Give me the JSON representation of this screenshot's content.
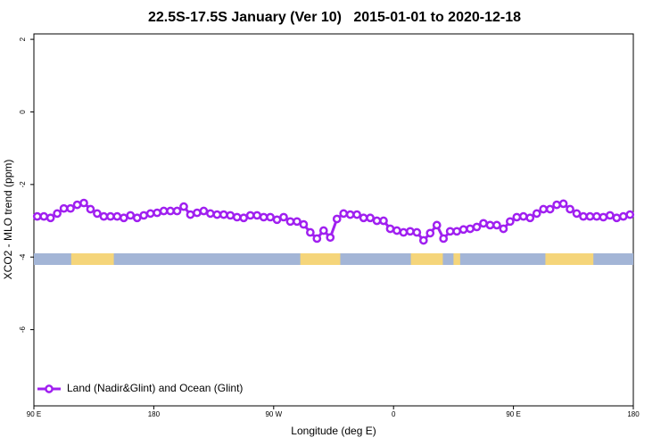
{
  "chart_data": {
    "type": "line",
    "title": "22.5S-17.5S January (Ver 10)   2015-01-01 to 2020-12-18",
    "xlabel": "Longitude (deg E)",
    "ylabel": "XCO2 - MLO trend (ppm)",
    "xlim": [
      90,
      540
    ],
    "xticks": [
      {
        "value": 90,
        "label": "90 E"
      },
      180,
      {
        "value": 270,
        "label": "90 W"
      },
      {
        "value": 360,
        "label": "0"
      },
      {
        "value": 450,
        "label": "90 E"
      },
      {
        "value": 540,
        "label": "180"
      }
    ],
    "ylim": [
      -8.1,
      2.15
    ],
    "yticks": [
      2,
      0,
      -2,
      -4,
      -6
    ],
    "legend": "bottom-left",
    "surface_colors": {
      "ocean": "#a3b5d6",
      "land": "#f5d57a"
    },
    "land_bands": [
      [
        118,
        150
      ],
      [
        290,
        320
      ],
      [
        373,
        397
      ],
      [
        405,
        410
      ],
      [
        474,
        510
      ]
    ],
    "x": [
      92.5,
      97.5,
      102.5,
      107.5,
      112.5,
      117.5,
      122.5,
      127.5,
      132.5,
      137.5,
      142.5,
      147.5,
      152.5,
      157.5,
      162.5,
      167.5,
      172.5,
      177.5,
      182.5,
      187.5,
      192.5,
      197.5,
      202.5,
      207.5,
      212.5,
      217.5,
      222.5,
      227.5,
      232.5,
      237.5,
      242.5,
      247.5,
      252.5,
      257.5,
      262.5,
      267.5,
      272.5,
      277.5,
      282.5,
      287.5,
      292.5,
      297.5,
      302.5,
      307.5,
      312.5,
      317.5,
      322.5,
      327.5,
      332.5,
      337.5,
      342.5,
      347.5,
      352.5,
      357.5,
      362.5,
      367.5,
      372.5,
      377.5,
      382.5,
      387.5,
      392.5,
      397.5,
      402.5,
      407.5,
      412.5,
      417.5,
      422.5,
      427.5,
      432.5,
      437.5,
      442.5,
      447.5,
      452.5,
      457.5,
      462.5,
      467.5,
      472.5,
      477.5,
      482.5,
      487.5,
      492.5,
      497.5,
      502.5,
      507.5,
      512.5,
      517.5,
      522.5,
      527.5,
      532.5,
      537.5
    ],
    "series": [
      {
        "name": "Land (Nadir&Glint) and Ocean (Glint)",
        "color": "#a020f0",
        "values": [
          -2.88,
          -2.88,
          -2.92,
          -2.8,
          -2.66,
          -2.66,
          -2.56,
          -2.51,
          -2.68,
          -2.8,
          -2.88,
          -2.88,
          -2.88,
          -2.92,
          -2.85,
          -2.92,
          -2.85,
          -2.8,
          -2.78,
          -2.73,
          -2.73,
          -2.73,
          -2.61,
          -2.83,
          -2.78,
          -2.73,
          -2.8,
          -2.83,
          -2.83,
          -2.85,
          -2.9,
          -2.92,
          -2.85,
          -2.85,
          -2.9,
          -2.9,
          -2.97,
          -2.9,
          -3.02,
          -3.02,
          -3.1,
          -3.32,
          -3.49,
          -3.27,
          -3.46,
          -2.95,
          -2.8,
          -2.83,
          -2.83,
          -2.92,
          -2.92,
          -3.0,
          -3.0,
          -3.22,
          -3.27,
          -3.32,
          -3.29,
          -3.32,
          -3.54,
          -3.34,
          -3.12,
          -3.49,
          -3.29,
          -3.29,
          -3.24,
          -3.22,
          -3.17,
          -3.07,
          -3.12,
          -3.12,
          -3.22,
          -3.02,
          -2.9,
          -2.88,
          -2.92,
          -2.8,
          -2.68,
          -2.68,
          -2.56,
          -2.53,
          -2.68,
          -2.8,
          -2.88,
          -2.88,
          -2.88,
          -2.9,
          -2.85,
          -2.92,
          -2.88,
          -2.83
        ]
      }
    ]
  }
}
